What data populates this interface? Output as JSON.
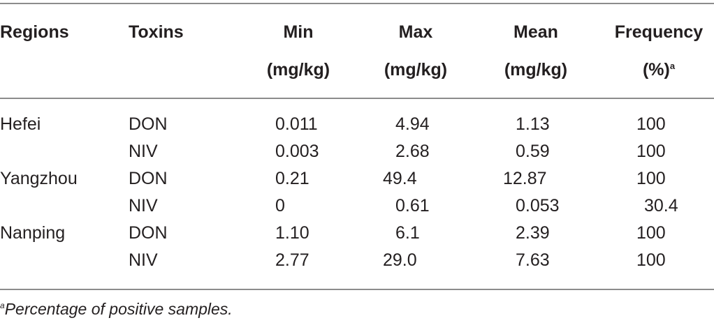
{
  "table": {
    "header": {
      "regions": "Regions",
      "toxins": "Toxins",
      "min_line1": "Min",
      "min_line2": "(mg/kg)",
      "max_line1": "Max",
      "max_line2": "(mg/kg)",
      "mean_line1": "Mean",
      "mean_line2": "(mg/kg)",
      "freq_line1": "Frequency",
      "freq_line2": "(%)",
      "freq_note": "a"
    },
    "rows": [
      {
        "region": "Hefei",
        "toxin": "DON",
        "min": "0.011",
        "max": "4.94",
        "mean": "1.13",
        "freq": "100"
      },
      {
        "region": "",
        "toxin": "NIV",
        "min": "0.003",
        "max": "2.68",
        "mean": "0.59",
        "freq": "100"
      },
      {
        "region": "Yangzhou",
        "toxin": "DON",
        "min": "0.21",
        "max": "49.4",
        "mean": "12.87",
        "freq": "100"
      },
      {
        "region": "",
        "toxin": "NIV",
        "min": "0",
        "max": "0.61",
        "mean": "0.053",
        "freq": "30.4"
      },
      {
        "region": "Nanping",
        "toxin": "DON",
        "min": "1.10",
        "max": "6.1",
        "mean": "2.39",
        "freq": "100"
      },
      {
        "region": "",
        "toxin": "NIV",
        "min": "2.77",
        "max": "29.0",
        "mean": "7.63",
        "freq": "100"
      }
    ]
  },
  "footnote": {
    "mark": "a",
    "text": "Percentage of positive samples."
  }
}
